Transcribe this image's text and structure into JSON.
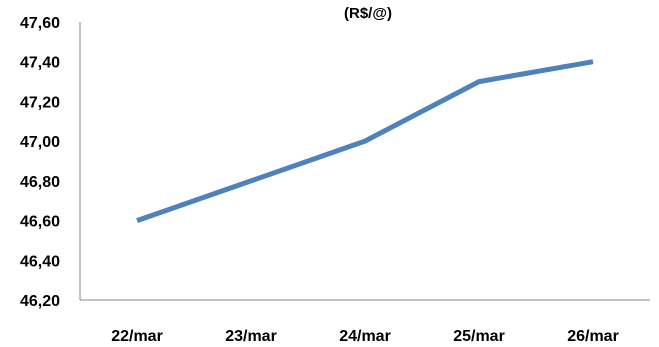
{
  "chart_data": {
    "type": "line",
    "title": "(R$/@)",
    "xlabel": "",
    "ylabel": "",
    "categories": [
      "22/mar",
      "23/mar",
      "24/mar",
      "25/mar",
      "26/mar"
    ],
    "series": [
      {
        "values": [
          46.6,
          46.8,
          47.0,
          47.3,
          47.4
        ]
      }
    ],
    "ylim": [
      46.2,
      47.6
    ],
    "yticks": [
      {
        "value": 46.2,
        "label": "46,20"
      },
      {
        "value": 46.4,
        "label": "46,40"
      },
      {
        "value": 46.6,
        "label": "46,60"
      },
      {
        "value": 46.8,
        "label": "46,80"
      },
      {
        "value": 47.0,
        "label": "47,00"
      },
      {
        "value": 47.2,
        "label": "47,20"
      },
      {
        "value": 47.4,
        "label": "47,40"
      },
      {
        "value": 47.6,
        "label": "47,60"
      }
    ],
    "grid": false,
    "legend": "none",
    "colors": {
      "line": "#4f81bd",
      "axis": "#868686",
      "text": "#000000"
    }
  }
}
